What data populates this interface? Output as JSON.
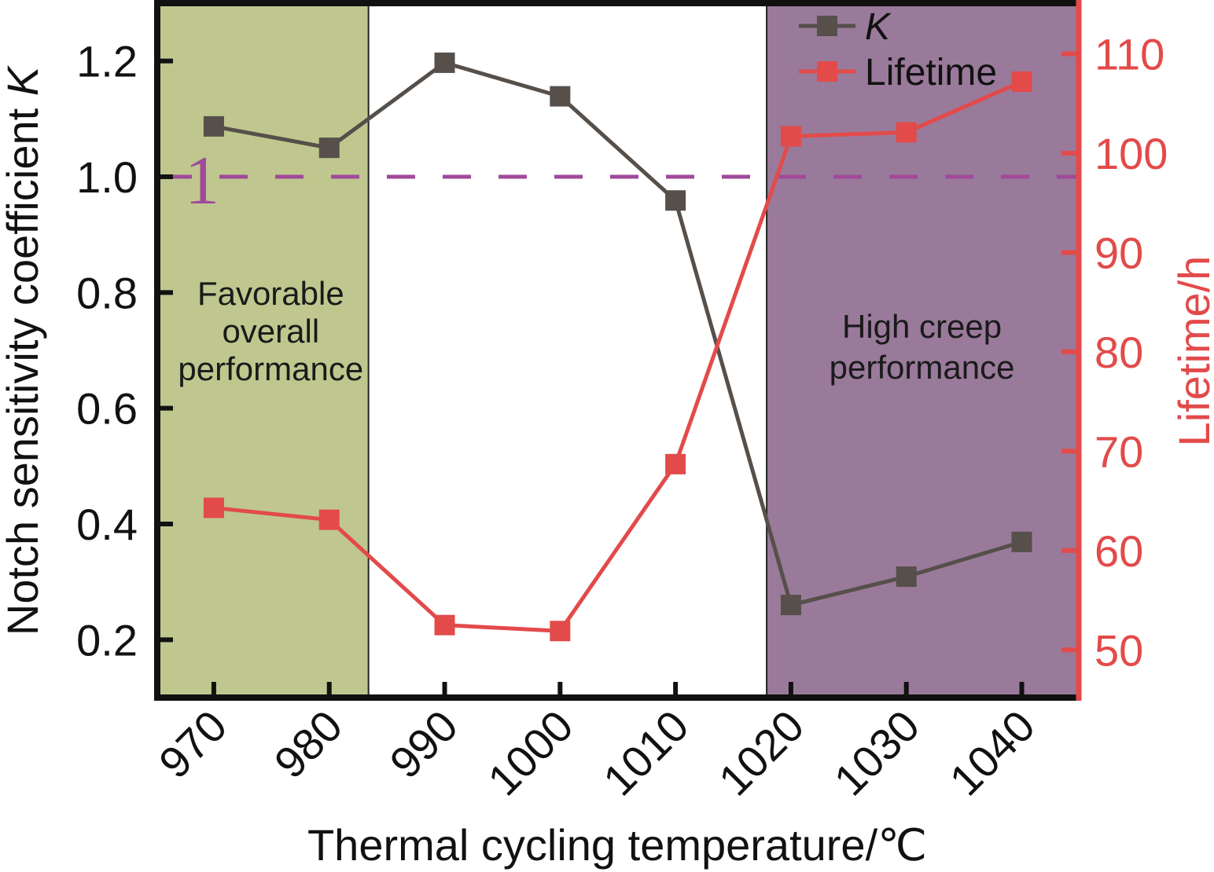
{
  "chart_data": {
    "type": "line",
    "title": "",
    "xlabel": "Thermal cycling temperature/℃",
    "ylabel": "Notch sensitivity coefficient",
    "ylabel_symbol": "K",
    "y2label": "Lifetime/h",
    "x": [
      970,
      980,
      990,
      1000,
      1010,
      1020,
      1030,
      1040
    ],
    "x_tick_labels": [
      "970",
      "980",
      "990",
      "1000",
      "1010",
      "1020",
      "1030",
      "1040"
    ],
    "xlim": [
      965.1,
      1044.8
    ],
    "ylim": [
      0.1,
      1.3
    ],
    "y_ticks": [
      0.2,
      0.4,
      0.6,
      0.8,
      1.0,
      1.2
    ],
    "y_tick_labels": [
      "0.2",
      "0.4",
      "0.6",
      "0.8",
      "1.0",
      "1.2"
    ],
    "y2lim": [
      45.2,
      115.1
    ],
    "y2_ticks": [
      50,
      60,
      70,
      80,
      90,
      100,
      110
    ],
    "y2_tick_labels": [
      "50",
      "60",
      "70",
      "80",
      "90",
      "100",
      "110"
    ],
    "grid": false,
    "legend_position": "top-right",
    "series": [
      {
        "name": "K",
        "axis": "left",
        "marker": "square",
        "color": "#564f4a",
        "values": [
          1.087,
          1.05,
          1.197,
          1.139,
          0.959,
          0.26,
          0.309,
          0.369
        ]
      },
      {
        "name": "Lifetime",
        "axis": "right",
        "marker": "square",
        "color": "#e34a4a",
        "values": [
          64.3,
          63.1,
          52.5,
          51.9,
          68.7,
          101.7,
          102.1,
          107.2
        ]
      }
    ],
    "reference_line": {
      "value": 1.0,
      "axis": "left",
      "style": "dashed",
      "color": "#a04a9a",
      "label": "1"
    },
    "regions": [
      {
        "name": "favorable",
        "x_range": [
          965.1,
          983.4
        ],
        "color": "#bfc78f",
        "label_lines": [
          "Favorable",
          "overall",
          "performance"
        ]
      },
      {
        "name": "high-creep",
        "x_range": [
          1017.9,
          1044.8
        ],
        "color": "#9a7a9a",
        "label_lines": [
          "High creep",
          "performance"
        ]
      }
    ]
  },
  "colors": {
    "axis": "#111111",
    "right_axis": "#e34a4a",
    "text": "#111111"
  }
}
